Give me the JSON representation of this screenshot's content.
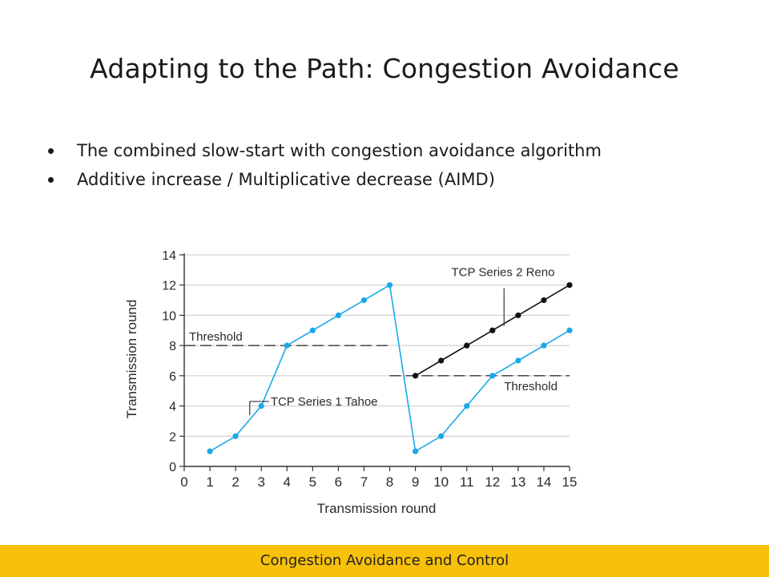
{
  "slide": {
    "title": "Adapting to the Path: Congestion Avoidance",
    "bullets": [
      "The combined slow-start with congestion avoidance algorithm",
      "Additive increase / Multiplicative decrease (AIMD)"
    ],
    "footer": "Congestion Avoidance and Control"
  },
  "colors": {
    "tahoe": "#1aa9e8",
    "reno": "#111111",
    "footer_bg": "#f7c00a"
  },
  "chart_data": {
    "type": "line",
    "xlabel": "Transmission round",
    "ylabel": "Transmission round",
    "x_ticks": [
      0,
      1,
      2,
      3,
      4,
      5,
      6,
      7,
      8,
      9,
      10,
      11,
      12,
      13,
      14,
      15
    ],
    "y_ticks": [
      0,
      2,
      4,
      6,
      8,
      10,
      12,
      14
    ],
    "xlim": [
      0,
      15
    ],
    "ylim": [
      0,
      14
    ],
    "grid": "horizontal",
    "series": [
      {
        "name": "TCP Series 1 Tahoe",
        "color": "#1aa9e8",
        "x": [
          1,
          2,
          3,
          4,
          5,
          6,
          7,
          8,
          9,
          10,
          11,
          12,
          13,
          14,
          15
        ],
        "y": [
          1,
          2,
          4,
          8,
          9,
          10,
          11,
          12,
          1,
          2,
          4,
          6,
          7,
          8,
          9
        ]
      },
      {
        "name": "TCP Series 2 Reno",
        "color": "#111111",
        "x": [
          9,
          10,
          11,
          12,
          13,
          14,
          15
        ],
        "y": [
          6,
          7,
          8,
          9,
          10,
          11,
          12
        ]
      }
    ],
    "thresholds": [
      {
        "label": "Threshold",
        "value": 8,
        "x_from": 0,
        "x_to": 8
      },
      {
        "label": "Threshold",
        "value": 6,
        "x_from": 8,
        "x_to": 15
      }
    ]
  }
}
